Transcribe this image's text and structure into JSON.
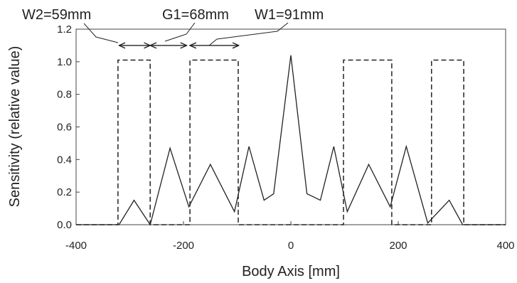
{
  "chart_data": {
    "type": "line",
    "xlabel": "Body Axis [mm]",
    "ylabel": "Sensitivity (relative value)",
    "xlim": [
      -400,
      400
    ],
    "ylim": [
      0,
      1.2
    ],
    "xticks": [
      -400,
      -200,
      0,
      200,
      400
    ],
    "xtick_labels": [
      "-400",
      "-200",
      "0",
      "200",
      "400"
    ],
    "yticks": [
      0.0,
      0.2,
      0.4,
      0.6,
      0.8,
      1.0,
      1.2
    ],
    "ytick_labels": [
      "0.0",
      "0.2",
      "0.4",
      "0.6",
      "0.8",
      "1.0",
      "1.2"
    ],
    "grid": false,
    "series": [
      {
        "style": "solid",
        "x": [
          -400,
          -320,
          -292,
          -262,
          -225,
          -190,
          -150,
          -105,
          -78,
          -50,
          -32,
          0,
          30,
          55,
          80,
          105,
          145,
          185,
          215,
          255,
          295,
          320,
          400
        ],
        "y": [
          0,
          0,
          0.15,
          0,
          0.47,
          0.11,
          0.37,
          0.08,
          0.48,
          0.15,
          0.19,
          1.04,
          0.19,
          0.15,
          0.48,
          0.08,
          0.37,
          0.11,
          0.48,
          0.01,
          0.15,
          0,
          0
        ]
      },
      {
        "style": "dashed",
        "x": [
          -400,
          -322,
          -322,
          -262,
          -262,
          -188,
          -188,
          -98,
          -98,
          98,
          98,
          188,
          188,
          262,
          262,
          322,
          322,
          400
        ],
        "y": [
          0,
          0,
          1.01,
          1.01,
          0,
          0,
          1.01,
          1.01,
          0,
          0,
          1.01,
          1.01,
          0,
          0,
          1.01,
          1.01,
          0,
          0
        ]
      }
    ],
    "annotations": [
      {
        "text": "W2=59mm",
        "arrow_x": [
          -320,
          -262
        ],
        "arrow_y": 1.1
      },
      {
        "text": "G1=68mm",
        "arrow_x": [
          -262,
          -194
        ],
        "arrow_y": 1.1
      },
      {
        "text": "W1=91mm",
        "arrow_x": [
          -188,
          -97
        ],
        "arrow_y": 1.1
      }
    ]
  }
}
